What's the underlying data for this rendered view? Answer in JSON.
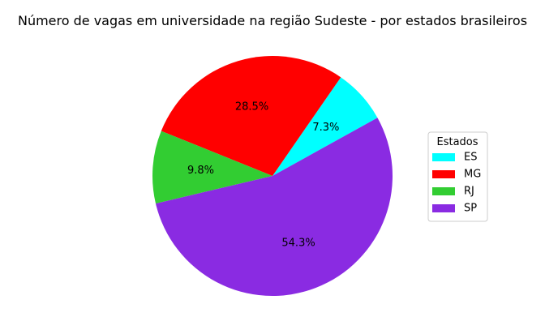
{
  "chart_data": {
    "type": "pie",
    "title": "Número de vagas em universidade na região Sudeste - por estados brasileiros",
    "legend_title": "Estados",
    "legend_position": "right",
    "slices": [
      {
        "label": "ES",
        "value": 7.3,
        "pct_label": "7.3%",
        "color": "#00FFFF"
      },
      {
        "label": "MG",
        "value": 28.5,
        "pct_label": "28.5%",
        "color": "#FF0000"
      },
      {
        "label": "RJ",
        "value": 9.8,
        "pct_label": "9.8%",
        "color": "#32CD32"
      },
      {
        "label": "SP",
        "value": 54.3,
        "pct_label": "54.3%",
        "color": "#8A2BE2"
      }
    ]
  }
}
